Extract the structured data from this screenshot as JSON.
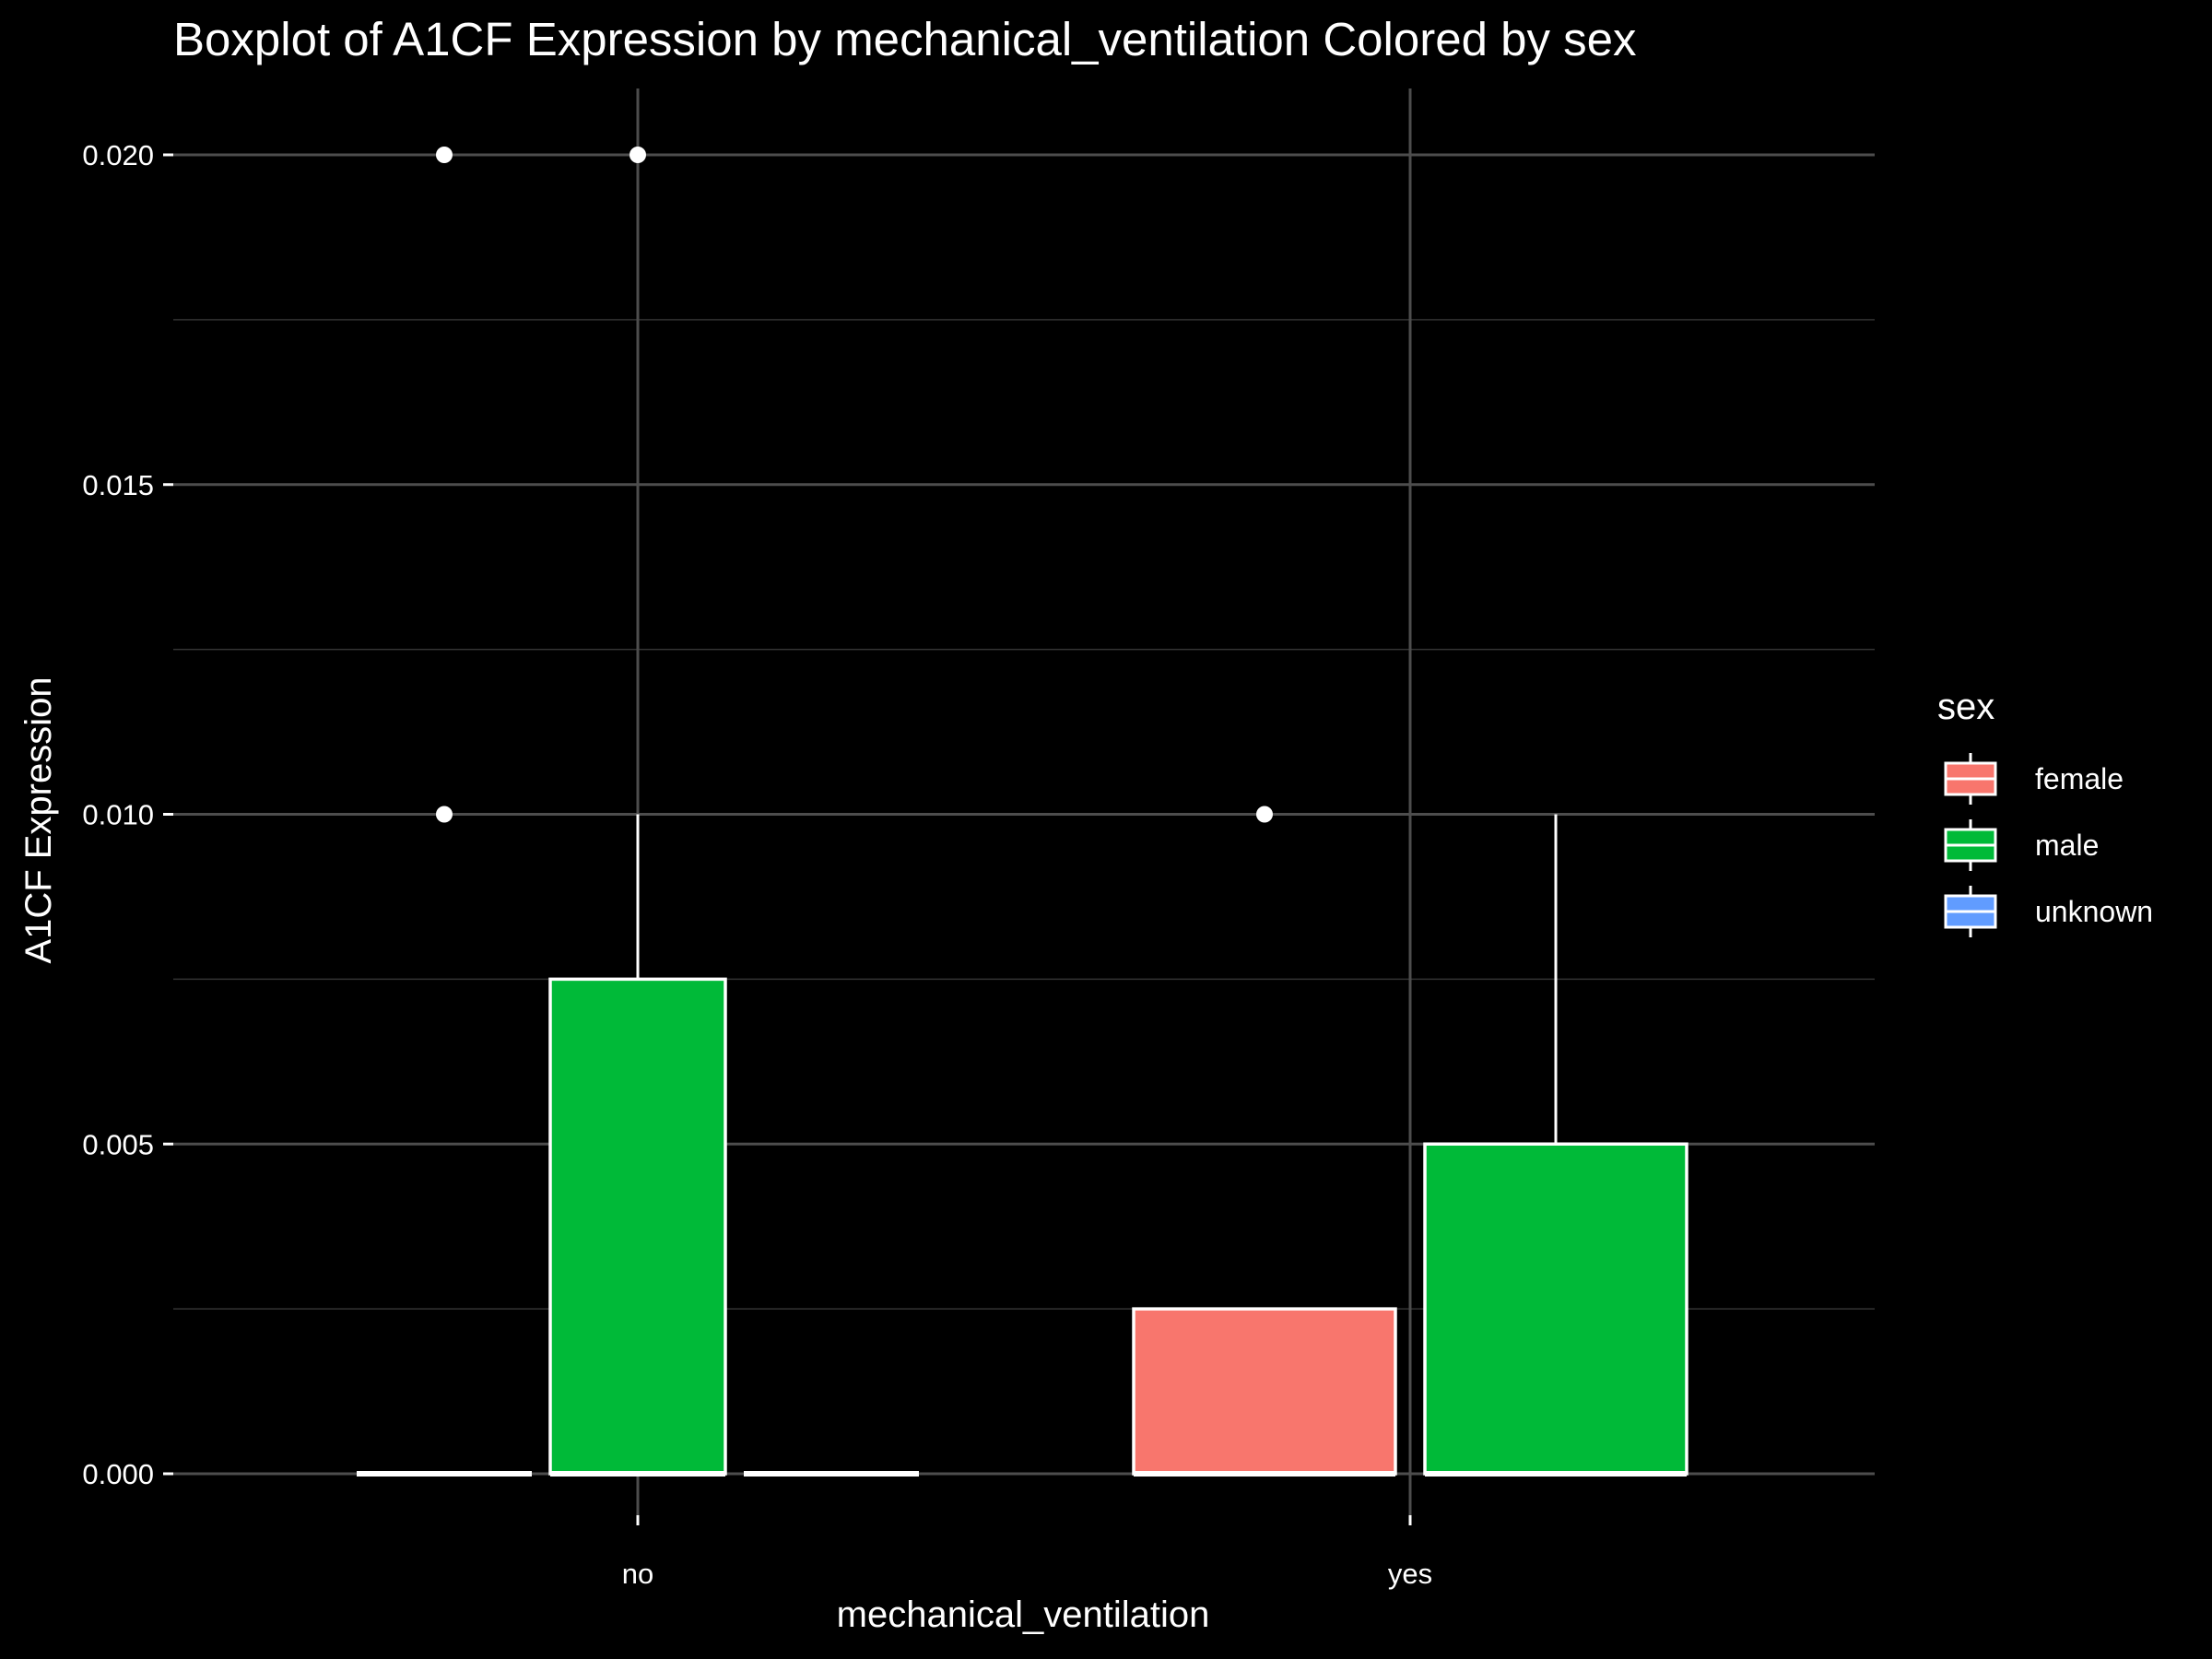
{
  "chart_data": {
    "type": "boxplot",
    "title": "Boxplot of A1CF Expression by mechanical_ventilation Colored by sex",
    "xlabel": "mechanical_ventilation",
    "ylabel": "A1CF Expression",
    "ylim": [
      -0.0006,
      0.021
    ],
    "y_ticks": [
      "0.000",
      "0.005",
      "0.010",
      "0.015",
      "0.020"
    ],
    "y_tick_values": [
      0,
      0.005,
      0.01,
      0.015,
      0.02
    ],
    "categories": [
      "no",
      "yes"
    ],
    "legend": {
      "title": "sex",
      "position": "right",
      "entries": [
        {
          "label": "female",
          "color": "#F8766D"
        },
        {
          "label": "male",
          "color": "#00BA38"
        },
        {
          "label": "unknown",
          "color": "#619CFF"
        }
      ]
    },
    "grid": true,
    "boxes": [
      {
        "category": "no",
        "group": "female",
        "min": 0,
        "q1": 0,
        "median": 0,
        "q3": 0,
        "max": 0,
        "outliers": [
          0.01,
          0.02
        ]
      },
      {
        "category": "no",
        "group": "male",
        "min": 0,
        "q1": 0,
        "median": 0,
        "q3": 0.0075,
        "max": 0.01,
        "outliers": [
          0.02
        ]
      },
      {
        "category": "no",
        "group": "unknown",
        "min": 0,
        "q1": 0,
        "median": 0,
        "q3": 0,
        "max": 0,
        "outliers": []
      },
      {
        "category": "yes",
        "group": "female",
        "min": 0,
        "q1": 0,
        "median": 0,
        "q3": 0.0025,
        "max": 0.0025,
        "outliers": [
          0.01
        ]
      },
      {
        "category": "yes",
        "group": "male",
        "min": 0,
        "q1": 0,
        "median": 0,
        "q3": 0.005,
        "max": 0.01,
        "outliers": []
      }
    ]
  }
}
